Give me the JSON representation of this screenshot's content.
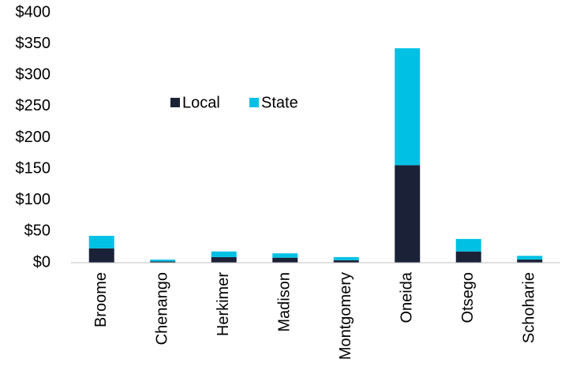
{
  "chart_data": {
    "type": "stacked_bar",
    "categories": [
      "Broome",
      "Chenango",
      "Herkimer",
      "Madison",
      "Montgomery",
      "Oneida",
      "Otsego",
      "Schoharie"
    ],
    "series": [
      {
        "name": "Local",
        "color": "#1b2238",
        "values": [
          23,
          2,
          9,
          8,
          4,
          156,
          18,
          5
        ]
      },
      {
        "name": "State",
        "color": "#00c1e3",
        "values": [
          20,
          3,
          9,
          7,
          5,
          187,
          20,
          6
        ]
      }
    ],
    "ylim": [
      0,
      400
    ],
    "yticks": [
      {
        "value": 0,
        "label": "$0"
      },
      {
        "value": 50,
        "label": "$50"
      },
      {
        "value": 100,
        "label": "$100"
      },
      {
        "value": 150,
        "label": "$150"
      },
      {
        "value": 200,
        "label": "$200"
      },
      {
        "value": 250,
        "label": "$250"
      },
      {
        "value": 300,
        "label": "$300"
      },
      {
        "value": 350,
        "label": "$350"
      },
      {
        "value": 400,
        "label": "$400"
      }
    ],
    "grid": false
  }
}
